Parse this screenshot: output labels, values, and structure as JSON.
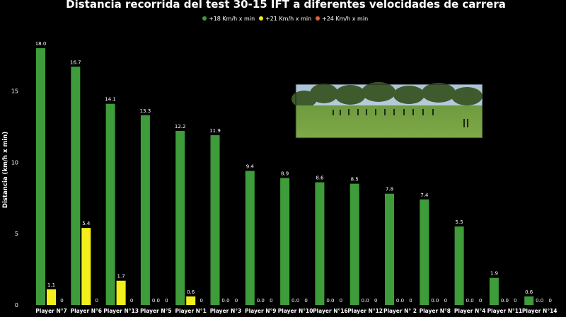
{
  "chart_data": {
    "type": "bar",
    "title": "Distancia recorrida del test 30-15 IFT a diferentes velocidades de carrera",
    "ylabel": "Distancia (km/h x min)",
    "xlabel": "",
    "ylim": [
      0,
      18.5
    ],
    "yticks": [
      0,
      5,
      10,
      15
    ],
    "legend_position": "top-right",
    "categories": [
      "Player N°7",
      "Player N°6",
      "Player N°13",
      "Player N°5",
      "Player N°1",
      "Player N°3",
      "Player N°9",
      "Player N°10",
      "Player N°16",
      "Player N°12",
      "Player N° 2",
      "Player N°8",
      "Player N°4",
      "Player N°11",
      "Player N°14"
    ],
    "series": [
      {
        "name": "+18 Km/h x min",
        "color": "#3e9c3a",
        "values": [
          18.0,
          16.7,
          14.1,
          13.3,
          12.2,
          11.9,
          9.4,
          8.9,
          8.6,
          8.5,
          7.8,
          7.4,
          5.5,
          1.9,
          0.6
        ],
        "labels": [
          "18.0",
          "16.7",
          "14.1",
          "13.3",
          "12.2",
          "11.9",
          "9.4",
          "8.9",
          "8.6",
          "8.5",
          "7.8",
          "7.4",
          "5.5",
          "1.9",
          "0.6"
        ]
      },
      {
        "name": "+21 Km/h x min",
        "color": "#f2ef1a",
        "values": [
          1.1,
          5.4,
          1.7,
          0,
          0.6,
          0,
          0,
          0,
          0,
          0,
          0,
          0,
          0,
          0,
          0
        ],
        "labels": [
          "1.1",
          "5.4",
          "1.7",
          "0.0",
          "0.6",
          "0.0",
          "0.0",
          "0.0",
          "0.0",
          "0.0",
          "0.0",
          "0.0",
          "0.0",
          "0.0",
          "0.0"
        ]
      },
      {
        "name": "+24 Km/h x min",
        "color": "#e8602c",
        "values": [
          0,
          0,
          0,
          0,
          0,
          0,
          0,
          0,
          0,
          0,
          0,
          0,
          0,
          0,
          0
        ],
        "labels": [
          "0",
          "0",
          "0",
          "0",
          "0",
          "0",
          "0",
          "0",
          "0",
          "0",
          "0",
          "0",
          "0",
          "0",
          "0"
        ]
      }
    ]
  },
  "photo": {
    "icon": "field-photo"
  }
}
